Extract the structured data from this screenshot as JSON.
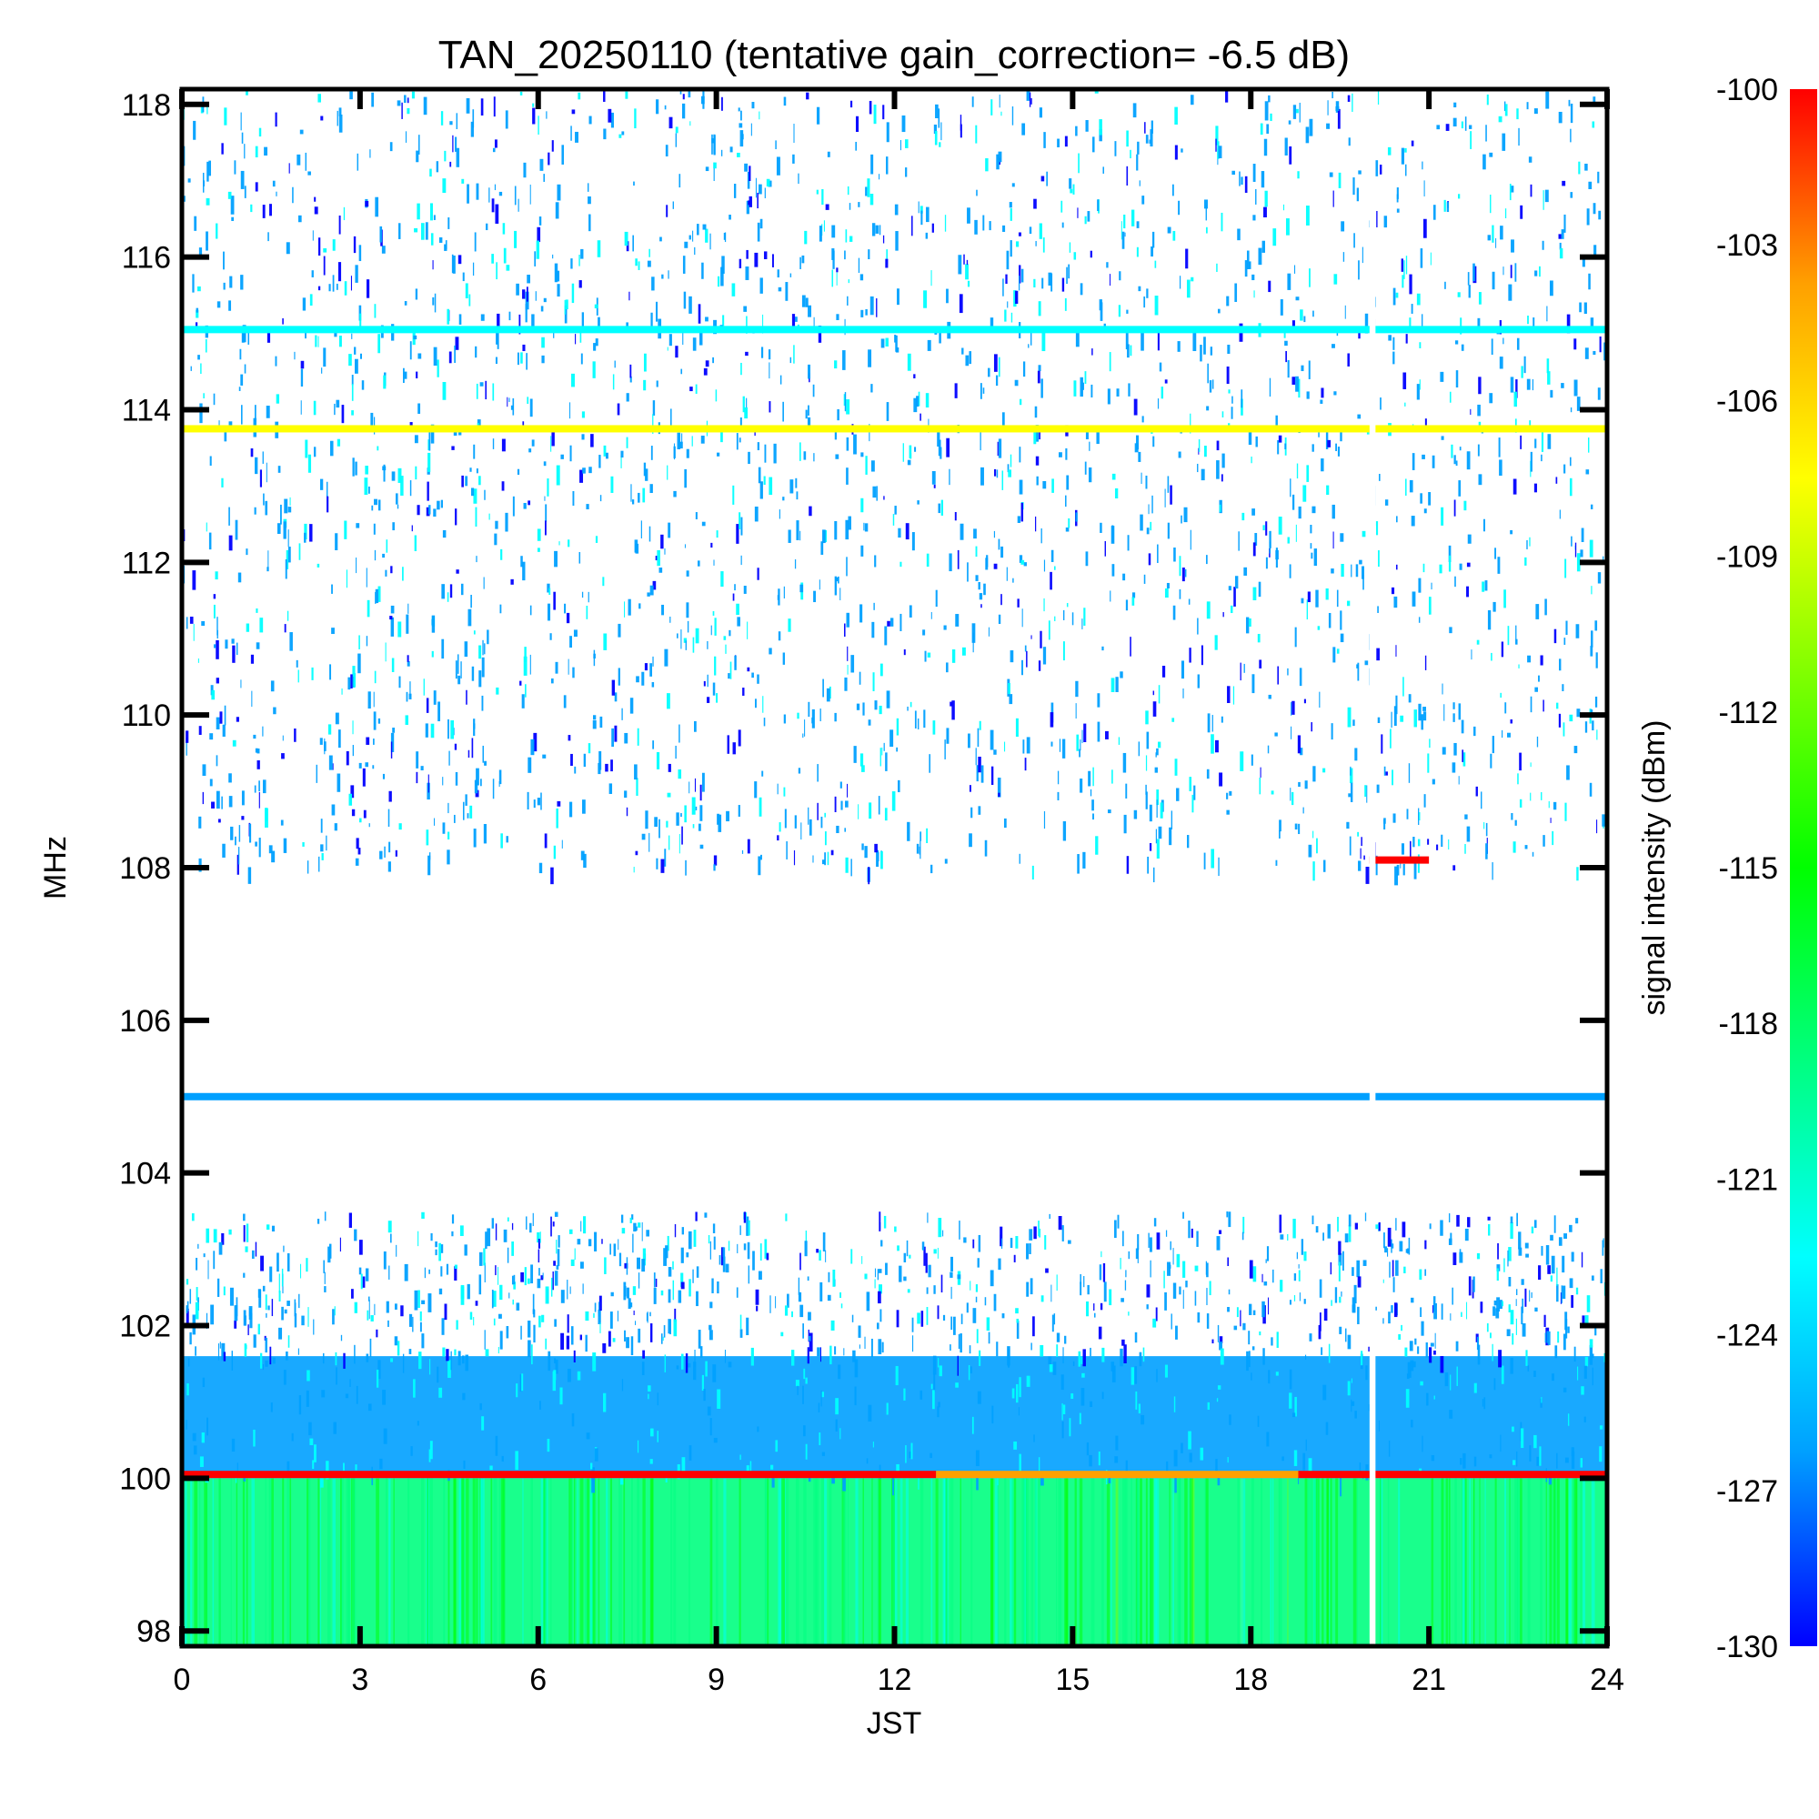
{
  "chart_data": {
    "type": "heatmap",
    "title": "TAN_20250110 (tentative gain_correction= -6.5 dB)",
    "xlabel": "JST",
    "ylabel": "MHz",
    "xlim": [
      0,
      24
    ],
    "ylim": [
      97.8,
      118.2
    ],
    "x_ticks": [
      0,
      3,
      6,
      9,
      12,
      15,
      18,
      21,
      24
    ],
    "x_tick_labels": [
      "0",
      "3",
      "6",
      "9",
      "12",
      "15",
      "18",
      "21",
      "24"
    ],
    "y_ticks": [
      98,
      100,
      102,
      104,
      106,
      108,
      110,
      112,
      114,
      116,
      118
    ],
    "y_tick_labels": [
      "98",
      "100",
      "102",
      "104",
      "106",
      "108",
      "110",
      "112",
      "114",
      "116",
      "118"
    ],
    "colorbar": {
      "label": "signal intensity (dBm)",
      "range": [
        -130,
        -100
      ],
      "ticks": [
        -100,
        -103,
        -106,
        -109,
        -112,
        -115,
        -118,
        -121,
        -124,
        -127,
        -130
      ],
      "tick_labels": [
        "-100",
        "-103",
        "-106",
        "-109",
        "-112",
        "-115",
        "-118",
        "-121",
        "-124",
        "-127",
        "-130"
      ],
      "colormap": [
        "#0000ff",
        "#00a0ff",
        "#00ffff",
        "#00ff80",
        "#00ff00",
        "#80ff00",
        "#ffff00",
        "#ffa000",
        "#ff0000"
      ]
    },
    "data_gap_jst": [
      20.0,
      20.1
    ],
    "bands": [
      {
        "freq_range": [
          97.8,
          100.0
        ],
        "level_dbm": -120,
        "note": "strong noise floor, green"
      },
      {
        "freq_range": [
          100.0,
          101.6
        ],
        "level_dbm": -128,
        "note": "dense blue"
      },
      {
        "freq_range": [
          101.6,
          103.5
        ],
        "level_dbm": -129,
        "note": "sparse blue"
      },
      {
        "freq_range": [
          108.0,
          118.2
        ],
        "level_dbm": -129,
        "note": "dense speckled blue"
      }
    ],
    "lines": [
      {
        "freq": 100.05,
        "segments": [
          {
            "x": [
              0,
              12.7
            ],
            "level_dbm": -100
          },
          {
            "x": [
              12.7,
              18.8
            ],
            "level_dbm": -105
          },
          {
            "x": [
              18.8,
              24
            ],
            "level_dbm": -100
          }
        ]
      },
      {
        "freq": 105.0,
        "segments": [
          {
            "x": [
              0,
              24
            ],
            "level_dbm": -128
          }
        ]
      },
      {
        "freq": 113.75,
        "segments": [
          {
            "x": [
              0,
              24
            ],
            "level_dbm": -109
          }
        ]
      },
      {
        "freq": 115.05,
        "segments": [
          {
            "x": [
              0,
              24
            ],
            "level_dbm": -122
          }
        ]
      },
      {
        "freq": 108.1,
        "segments": [
          {
            "x": [
              20.0,
              21.0
            ],
            "level_dbm": -100
          }
        ]
      }
    ]
  }
}
